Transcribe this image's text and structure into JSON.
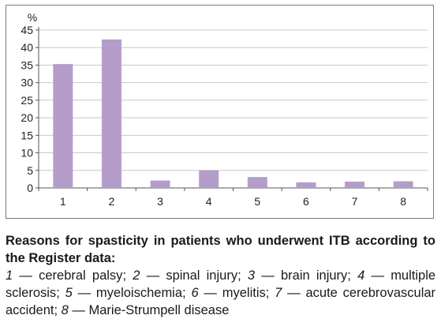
{
  "chart_data": {
    "type": "bar",
    "y_unit": "%",
    "categories": [
      "1",
      "2",
      "3",
      "4",
      "5",
      "6",
      "7",
      "8"
    ],
    "values": [
      35.3,
      42.3,
      2.1,
      5.0,
      3.1,
      1.6,
      1.8,
      1.9
    ],
    "yticks": [
      "0",
      "5",
      "10",
      "15",
      "20",
      "25",
      "30",
      "35",
      "40",
      "45"
    ],
    "ylim": [
      0,
      45
    ],
    "bar_color": "#b49dca",
    "grid": true,
    "gridline_color": "#c8c8c8",
    "legend": "none"
  },
  "caption": {
    "title": "Reasons for spasticity in patients who underwent ITB according to the Register data:",
    "items": [
      {
        "num": "1",
        "sep": " — ",
        "text": "cerebral palsy",
        "end": "; "
      },
      {
        "num": "2",
        "sep": " — ",
        "text": "spinal injury",
        "end": "; "
      },
      {
        "num": "3",
        "sep": " — ",
        "text": "brain injury",
        "end": "; "
      },
      {
        "num": "4",
        "sep": " — ",
        "text": "multiple sclerosis",
        "end": "; "
      },
      {
        "num": "5",
        "sep": " — ",
        "text": "myeloischemia",
        "end": "; "
      },
      {
        "num": "6",
        "sep": " — ",
        "text": "myelitis",
        "end": "; "
      },
      {
        "num": "7",
        "sep": " — ",
        "text": "acute cerebrovascular accident",
        "end": "; "
      },
      {
        "num": "8",
        "sep": " — ",
        "text": "Marie-Strumpell disease",
        "end": ""
      }
    ]
  }
}
